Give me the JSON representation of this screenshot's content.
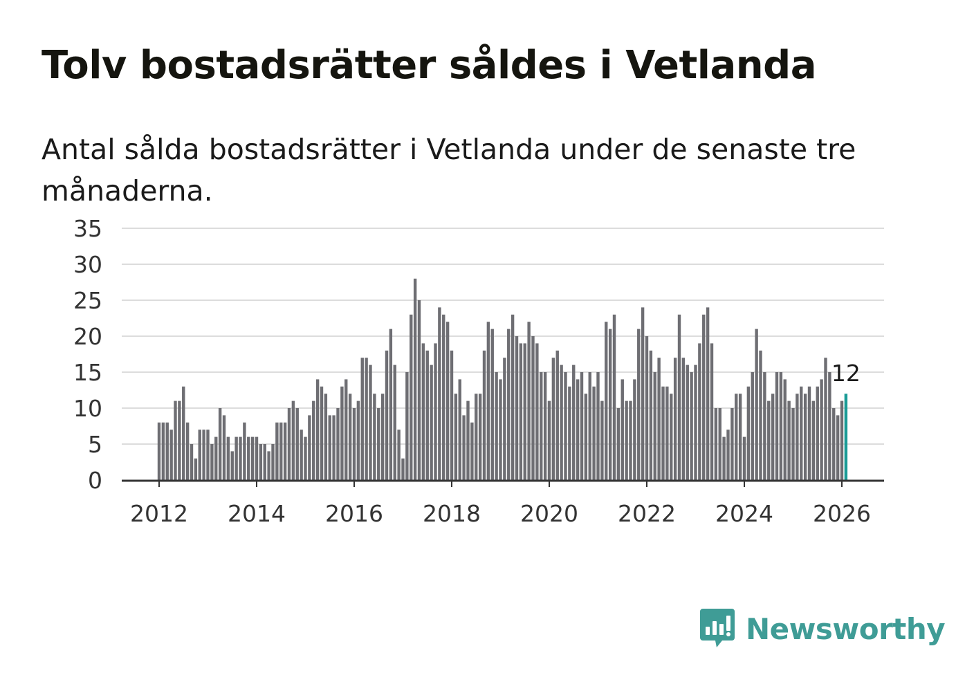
{
  "title": "Tolv bostadsrätter såldes i Vetlanda",
  "subtitle": "Antal sålda bostadsrätter i Vetlanda under de senaste tre månaderna.",
  "brand": {
    "name": "Newsworthy",
    "color": "#3f9c96",
    "icon": "newsworthy-logo-icon"
  },
  "chart_data": {
    "type": "bar",
    "title": "Tolv bostadsrätter såldes i Vetlanda",
    "xlabel": "",
    "ylabel": "",
    "ylim": [
      0,
      35
    ],
    "yticks": [
      0,
      5,
      10,
      15,
      20,
      25,
      30,
      35
    ],
    "xticks": [
      "2012",
      "2014",
      "2016",
      "2018",
      "2020",
      "2022",
      "2024",
      "2026"
    ],
    "start": "2012-01",
    "frequency": "monthly",
    "grid": true,
    "bar_color": "#6e6e73",
    "highlight_color": "#1a9b96",
    "highlight_label": "12",
    "values": [
      8,
      8,
      8,
      7,
      11,
      11,
      13,
      8,
      5,
      3,
      7,
      7,
      7,
      5,
      6,
      10,
      9,
      6,
      4,
      6,
      6,
      8,
      6,
      6,
      6,
      5,
      5,
      4,
      5,
      8,
      8,
      8,
      10,
      11,
      10,
      7,
      6,
      9,
      11,
      14,
      13,
      12,
      9,
      9,
      10,
      13,
      14,
      12,
      10,
      11,
      17,
      17,
      16,
      12,
      10,
      12,
      18,
      21,
      16,
      7,
      3,
      15,
      23,
      28,
      25,
      19,
      18,
      16,
      19,
      24,
      23,
      22,
      18,
      12,
      14,
      9,
      11,
      8,
      12,
      12,
      18,
      22,
      21,
      15,
      14,
      17,
      21,
      23,
      20,
      19,
      19,
      22,
      20,
      19,
      15,
      15,
      11,
      17,
      18,
      16,
      15,
      13,
      16,
      14,
      15,
      12,
      15,
      13,
      15,
      11,
      22,
      21,
      23,
      10,
      14,
      11,
      11,
      14,
      21,
      24,
      20,
      18,
      15,
      17,
      13,
      13,
      12,
      17,
      23,
      17,
      16,
      15,
      16,
      19,
      23,
      24,
      19,
      10,
      10,
      6,
      7,
      10,
      12,
      12,
      6,
      13,
      15,
      21,
      18,
      15,
      11,
      12,
      15,
      15,
      14,
      11,
      10,
      12,
      13,
      12,
      13,
      11,
      13,
      14,
      17,
      15,
      10,
      9,
      11,
      12
    ]
  }
}
